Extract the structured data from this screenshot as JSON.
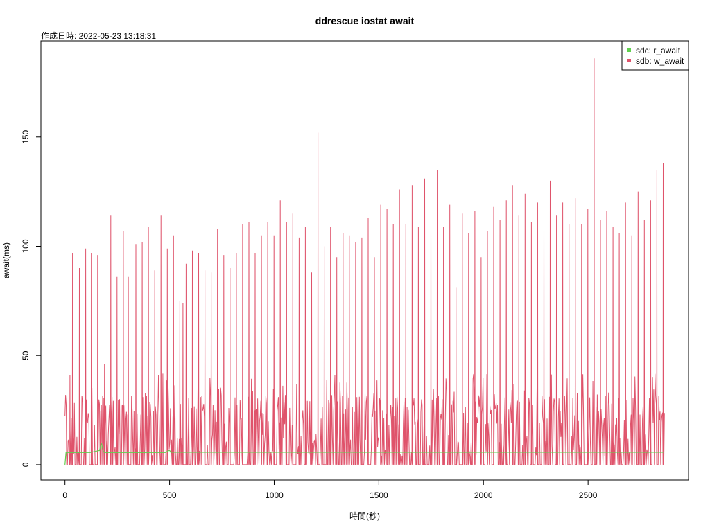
{
  "chart_data": {
    "type": "line",
    "title": "ddrescue iostat await",
    "subtitle": "作成日時: 2022-05-23 13:18:31",
    "xlabel": "時間(秒)",
    "ylabel": "await(ms)",
    "xlim": [
      -115,
      2980
    ],
    "ylim": [
      -7,
      194
    ],
    "xticks": [
      0,
      500,
      1000,
      1500,
      2000,
      2500
    ],
    "yticks": [
      0,
      50,
      100,
      150
    ],
    "grid": false,
    "legend_position": "top-right",
    "series": [
      {
        "name": "sdc: r_await",
        "color": "#61d04f",
        "baseline": 5.6,
        "x": [
          0,
          5,
          10,
          120,
          165,
          170,
          175,
          180,
          185,
          190,
          195,
          480,
          490,
          500,
          505,
          800,
          1100,
          1500,
          1800,
          2100,
          2400,
          2700,
          2860
        ],
        "values": [
          0,
          5.6,
          5.6,
          5.6,
          6.5,
          8.5,
          9.5,
          7.5,
          5.8,
          5.6,
          5.6,
          5.6,
          6.2,
          6.6,
          5.7,
          5.7,
          5.7,
          5.7,
          5.7,
          5.7,
          5.7,
          5.7,
          5.7
        ]
      },
      {
        "name": "sdb: w_await",
        "color": "#df536b",
        "spikes": [
          [
            8,
            12
          ],
          [
            24,
            41
          ],
          [
            35,
            97
          ],
          [
            68,
            90
          ],
          [
            100,
            99
          ],
          [
            125,
            97
          ],
          [
            157,
            96
          ],
          [
            188,
            46
          ],
          [
            218,
            114
          ],
          [
            248,
            86
          ],
          [
            278,
            107
          ],
          [
            303,
            86
          ],
          [
            338,
            101
          ],
          [
            368,
            102
          ],
          [
            398,
            109
          ],
          [
            428,
            89
          ],
          [
            458,
            114
          ],
          [
            488,
            99
          ],
          [
            518,
            105
          ],
          [
            548,
            75
          ],
          [
            563,
            74
          ],
          [
            578,
            92
          ],
          [
            608,
            98
          ],
          [
            638,
            97
          ],
          [
            668,
            89
          ],
          [
            698,
            88
          ],
          [
            728,
            108
          ],
          [
            758,
            96
          ],
          [
            788,
            90
          ],
          [
            818,
            97
          ],
          [
            848,
            110
          ],
          [
            878,
            111
          ],
          [
            908,
            97
          ],
          [
            938,
            105
          ],
          [
            968,
            111
          ],
          [
            998,
            105
          ],
          [
            1030,
            121
          ],
          [
            1060,
            111
          ],
          [
            1088,
            115
          ],
          [
            1118,
            104
          ],
          [
            1148,
            109
          ],
          [
            1178,
            88
          ],
          [
            1210,
            152
          ],
          [
            1240,
            100
          ],
          [
            1270,
            109
          ],
          [
            1300,
            95
          ],
          [
            1330,
            106
          ],
          [
            1360,
            105
          ],
          [
            1390,
            102
          ],
          [
            1420,
            104
          ],
          [
            1450,
            113
          ],
          [
            1480,
            95
          ],
          [
            1510,
            119
          ],
          [
            1540,
            117
          ],
          [
            1570,
            110
          ],
          [
            1600,
            126
          ],
          [
            1630,
            110
          ],
          [
            1660,
            128
          ],
          [
            1690,
            109
          ],
          [
            1720,
            131
          ],
          [
            1750,
            110
          ],
          [
            1780,
            135
          ],
          [
            1810,
            109
          ],
          [
            1840,
            119
          ],
          [
            1870,
            81
          ],
          [
            1900,
            115
          ],
          [
            1930,
            106
          ],
          [
            1960,
            116
          ],
          [
            1990,
            95
          ],
          [
            2020,
            107
          ],
          [
            2050,
            118
          ],
          [
            2080,
            112
          ],
          [
            2110,
            121
          ],
          [
            2140,
            128
          ],
          [
            2170,
            114
          ],
          [
            2200,
            124
          ],
          [
            2230,
            111
          ],
          [
            2260,
            120
          ],
          [
            2290,
            108
          ],
          [
            2320,
            130
          ],
          [
            2350,
            114
          ],
          [
            2380,
            120
          ],
          [
            2410,
            110
          ],
          [
            2440,
            122
          ],
          [
            2470,
            110
          ],
          [
            2500,
            117
          ],
          [
            2530,
            186
          ],
          [
            2560,
            112
          ],
          [
            2590,
            116
          ],
          [
            2620,
            109
          ],
          [
            2650,
            106
          ],
          [
            2680,
            120
          ],
          [
            2710,
            105
          ],
          [
            2740,
            125
          ],
          [
            2770,
            112
          ],
          [
            2800,
            121
          ],
          [
            2830,
            135
          ],
          [
            2860,
            138
          ]
        ]
      }
    ]
  }
}
